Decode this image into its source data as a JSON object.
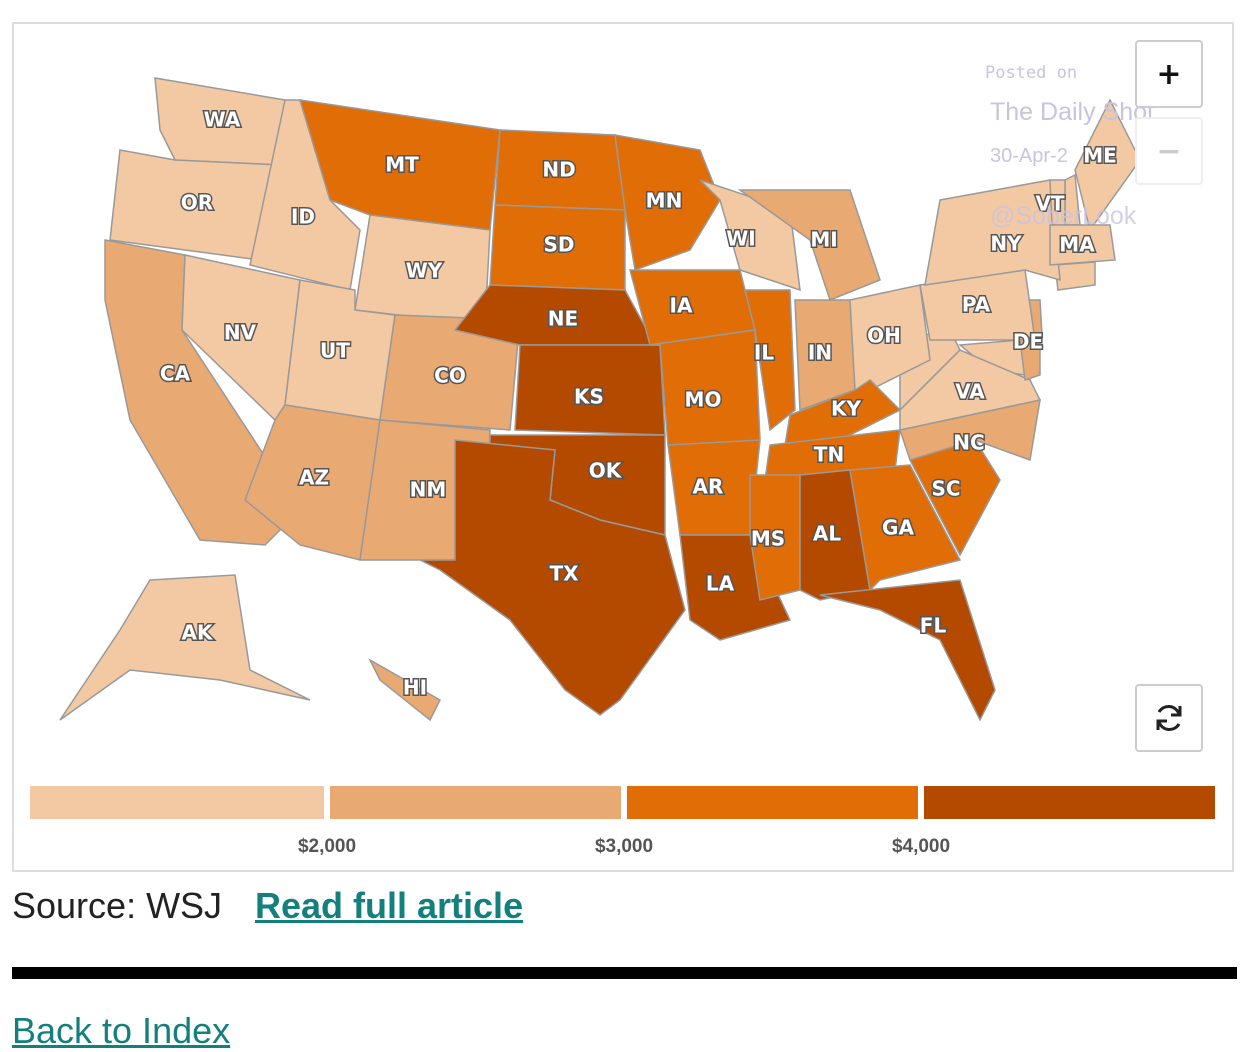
{
  "map": {
    "states": [
      {
        "label": "WA",
        "color": "#f3c9a3"
      },
      {
        "label": "OR",
        "color": "#f3c9a3"
      },
      {
        "label": "CA",
        "color": "#e8a973"
      },
      {
        "label": "NV",
        "color": "#f3c9a3"
      },
      {
        "label": "ID",
        "color": "#f3c9a3"
      },
      {
        "label": "MT",
        "color": "#e06d06"
      },
      {
        "label": "WY",
        "color": "#f3c9a3"
      },
      {
        "label": "UT",
        "color": "#f3c9a3"
      },
      {
        "label": "CO",
        "color": "#e8a973"
      },
      {
        "label": "AZ",
        "color": "#e8a973"
      },
      {
        "label": "NM",
        "color": "#e8a973"
      },
      {
        "label": "ND",
        "color": "#e06d06"
      },
      {
        "label": "SD",
        "color": "#e06d06"
      },
      {
        "label": "NE",
        "color": "#b34a00"
      },
      {
        "label": "KS",
        "color": "#b34a00"
      },
      {
        "label": "OK",
        "color": "#b34a00"
      },
      {
        "label": "TX",
        "color": "#b34a00"
      },
      {
        "label": "MN",
        "color": "#e06d06"
      },
      {
        "label": "IA",
        "color": "#e06d06"
      },
      {
        "label": "MO",
        "color": "#e06d06"
      },
      {
        "label": "AR",
        "color": "#e06d06"
      },
      {
        "label": "LA",
        "color": "#b34a00"
      },
      {
        "label": "WI",
        "color": "#f3c9a3"
      },
      {
        "label": "IL",
        "color": "#e06d06"
      },
      {
        "label": "MI",
        "color": "#e8a973"
      },
      {
        "label": "IN",
        "color": "#e8a973"
      },
      {
        "label": "OH",
        "color": "#f3c9a3"
      },
      {
        "label": "KY",
        "color": "#e06d06"
      },
      {
        "label": "TN",
        "color": "#e06d06"
      },
      {
        "label": "MS",
        "color": "#e06d06"
      },
      {
        "label": "AL",
        "color": "#b34a00"
      },
      {
        "label": "GA",
        "color": "#e06d06"
      },
      {
        "label": "FL",
        "color": "#b34a00"
      },
      {
        "label": "SC",
        "color": "#e06d06"
      },
      {
        "label": "NC",
        "color": "#e8a973"
      },
      {
        "label": "VA",
        "color": "#f3c9a3"
      },
      {
        "label": "PA",
        "color": "#f3c9a3"
      },
      {
        "label": "NY",
        "color": "#f3c9a3"
      },
      {
        "label": "VT",
        "color": "#f3c9a3"
      },
      {
        "label": "ME",
        "color": "#f3c9a3"
      },
      {
        "label": "MA",
        "color": "#f3c9a3"
      },
      {
        "label": "DE",
        "color": "#e8a973"
      },
      {
        "label": "AK",
        "color": "#f3c9a3"
      },
      {
        "label": "HI",
        "color": "#e8a973"
      }
    ],
    "legend": {
      "colors": [
        "#f3c9a3",
        "#e8a973",
        "#e06d06",
        "#b34a00"
      ],
      "ticks": [
        "$2,000",
        "$3,000",
        "$4,000"
      ]
    },
    "controls": {
      "zoom_in": "+",
      "zoom_out": "−"
    },
    "watermark": {
      "posted": "Posted on",
      "site": "The Daily Shot",
      "date": "30-Apr-2",
      "handle": "@SoberLook"
    }
  },
  "footer": {
    "source": "Source: WSJ",
    "link": "Read full article",
    "back": "Back to Index"
  }
}
